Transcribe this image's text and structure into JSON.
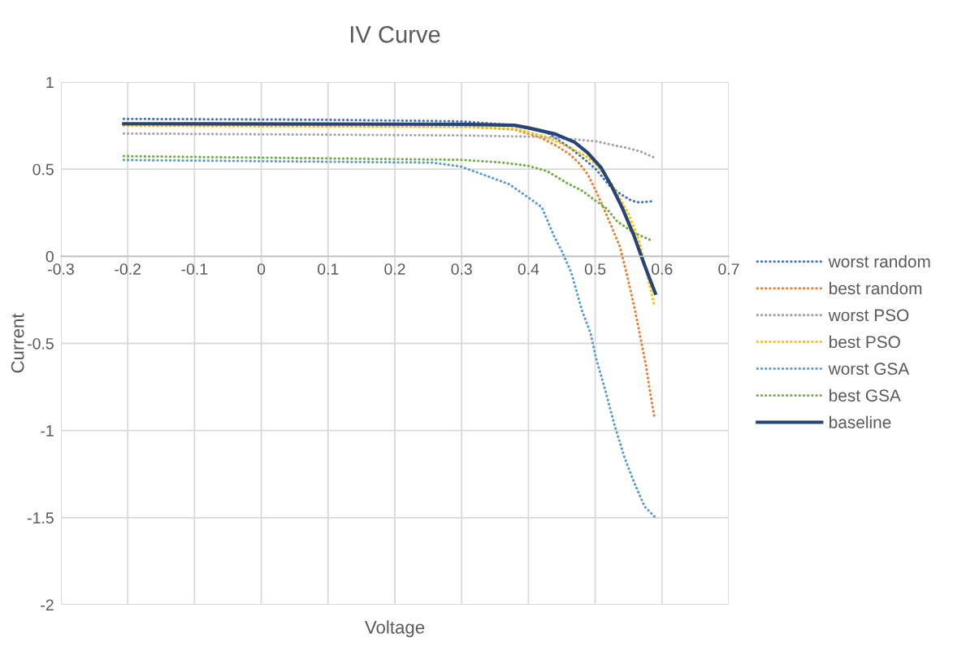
{
  "chart_data": {
    "type": "line",
    "title": "IV Curve",
    "xlabel": "Voltage",
    "ylabel": "Current",
    "xlim": [
      -0.3,
      0.7
    ],
    "xticks": [
      -0.3,
      -0.2,
      -0.1,
      0,
      0.1,
      0.2,
      0.3,
      0.4,
      0.5,
      0.6,
      0.7
    ],
    "ylim": [
      -2,
      1
    ],
    "yticks": [
      -2,
      -1.5,
      -1,
      -0.5,
      0,
      0.5,
      1
    ],
    "grid": true,
    "legend": "right",
    "marker": "none",
    "series": [
      {
        "name": "worst random",
        "color": "#4472c4",
        "line_style": "dotted",
        "x": [
          -0.206,
          0.095,
          0.298,
          0.379,
          0.428,
          0.462,
          0.485,
          0.501,
          0.521,
          0.537,
          0.554,
          0.566,
          0.585
        ],
        "values": [
          0.789,
          0.784,
          0.775,
          0.752,
          0.71,
          0.624,
          0.554,
          0.5,
          0.407,
          0.36,
          0.32,
          0.309,
          0.316
        ]
      },
      {
        "name": "best random",
        "color": "#ed7d31",
        "line_style": "dotted",
        "x": [
          -0.206,
          0.298,
          0.379,
          0.42,
          0.443,
          0.462,
          0.477,
          0.489,
          0.501,
          0.513,
          0.525,
          0.537,
          0.549,
          0.56,
          0.568,
          0.576,
          0.582,
          0.589
        ],
        "values": [
          0.757,
          0.745,
          0.728,
          0.679,
          0.632,
          0.585,
          0.53,
          0.469,
          0.375,
          0.274,
          0.166,
          0.055,
          -0.13,
          -0.316,
          -0.472,
          -0.627,
          -0.775,
          -0.931
        ]
      },
      {
        "name": "worst PSO",
        "color": "#a5a5a5",
        "line_style": "dotted",
        "x": [
          -0.206,
          0.298,
          0.42,
          0.471,
          0.501,
          0.529,
          0.55,
          0.568,
          0.588
        ],
        "values": [
          0.705,
          0.694,
          0.686,
          0.671,
          0.66,
          0.637,
          0.62,
          0.601,
          0.568
        ]
      },
      {
        "name": "best PSO",
        "color": "#ffc000",
        "line_style": "dotted",
        "x": [
          -0.206,
          0.298,
          0.379,
          0.42,
          0.448,
          0.483,
          0.501,
          0.525,
          0.55,
          0.566,
          0.588
        ],
        "values": [
          0.749,
          0.742,
          0.733,
          0.693,
          0.65,
          0.582,
          0.53,
          0.414,
          0.243,
          0.087,
          -0.274
        ]
      },
      {
        "name": "worst GSA",
        "color": "#5b9bd5",
        "line_style": "dotted",
        "x": [
          -0.206,
          0.256,
          0.298,
          0.338,
          0.371,
          0.399,
          0.42,
          0.438,
          0.45,
          0.464,
          0.48,
          0.493,
          0.501,
          0.515,
          0.529,
          0.544,
          0.558,
          0.574,
          0.589
        ],
        "values": [
          0.553,
          0.538,
          0.516,
          0.461,
          0.414,
          0.34,
          0.282,
          0.119,
          0.03,
          -0.091,
          -0.309,
          -0.441,
          -0.581,
          -0.767,
          -0.97,
          -1.156,
          -1.296,
          -1.436,
          -1.495
        ]
      },
      {
        "name": "best GSA",
        "color": "#70ad47",
        "line_style": "dotted",
        "x": [
          -0.206,
          0.298,
          0.359,
          0.399,
          0.428,
          0.457,
          0.481,
          0.497,
          0.517,
          0.533,
          0.558,
          0.586
        ],
        "values": [
          0.575,
          0.554,
          0.539,
          0.52,
          0.489,
          0.422,
          0.375,
          0.329,
          0.274,
          0.2,
          0.135,
          0.088
        ]
      },
      {
        "name": "baseline",
        "color": "#264478",
        "line_style": "solid",
        "x": [
          -0.206,
          0.298,
          0.379,
          0.399,
          0.44,
          0.469,
          0.489,
          0.509,
          0.525,
          0.541,
          0.558,
          0.574,
          0.59
        ],
        "values": [
          0.761,
          0.758,
          0.752,
          0.738,
          0.702,
          0.655,
          0.593,
          0.508,
          0.399,
          0.274,
          0.119,
          -0.052,
          -0.212
        ]
      }
    ]
  }
}
